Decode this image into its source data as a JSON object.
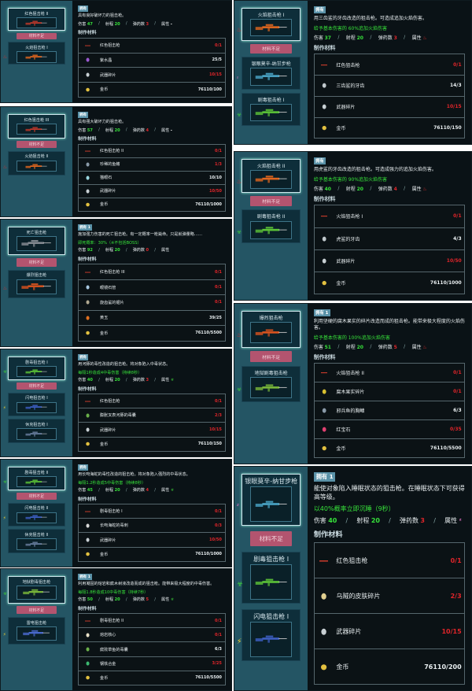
{
  "labels": {
    "not_enough": "材料不足",
    "materials_header": "制作材料",
    "damage": "伤害",
    "range": "射程",
    "ammo": "弹药数",
    "attribute": "属性",
    "sep": "/"
  },
  "colors": {
    "list_bg": "#245564",
    "detail_bg": "#0a1216",
    "ok_green": "#37e23a",
    "lack_red": "#e0252a",
    "button_pink": "#b3546f"
  },
  "panels": [
    {
      "items": [
        {
          "name": "红色狙击枪 II",
          "element": "",
          "color": "#c0392b",
          "selected": true
        },
        {
          "name": "火焰狙击枪 I",
          "element": "fire",
          "color": "#e0661e"
        }
      ],
      "badge": "拥有",
      "description": "具有良好破坏力的狙击枪。",
      "effect": "",
      "stats": {
        "damage": "47",
        "range": "20",
        "ammo": "3",
        "attr": "-"
      },
      "materials": [
        {
          "name": "红色狙击枪",
          "count": "0/1",
          "ok": false,
          "icon": "rifle"
        },
        {
          "name": "紫水晶",
          "count": "25/5",
          "ok": true,
          "icon": "amethyst"
        },
        {
          "name": "武器碎片",
          "count": "10/15",
          "ok": false,
          "icon": "parts"
        },
        {
          "name": "金币",
          "count": "76110/100",
          "ok": true,
          "icon": "coin"
        }
      ]
    },
    {
      "items": [
        {
          "name": "红色狙击枪 III",
          "element": "",
          "color": "#c0392b",
          "selected": true
        },
        {
          "name": "火焰狙击枪 II",
          "element": "fire",
          "color": "#e0661e"
        }
      ],
      "badge": "拥有",
      "description": "具有强大破坏力的狙击枪。",
      "effect": "",
      "stats": {
        "damage": "57",
        "range": "20",
        "ammo": "4",
        "attr": "-"
      },
      "materials": [
        {
          "name": "红色狙击枪 II",
          "count": "0/1",
          "ok": false,
          "icon": "rifle"
        },
        {
          "name": "珍稀的鱼鳍",
          "count": "1/3",
          "ok": false,
          "icon": "fin"
        },
        {
          "name": "猫眼石",
          "count": "10/10",
          "ok": true,
          "icon": "gem"
        },
        {
          "name": "武器碎片",
          "count": "10/50",
          "ok": false,
          "icon": "parts"
        },
        {
          "name": "金币",
          "count": "76110/1000",
          "ok": true,
          "icon": "coin"
        }
      ]
    },
    {
      "items": [
        {
          "name": "死亡狙击枪",
          "element": "",
          "color": "#8a8f96",
          "selected": true
        },
        {
          "name": "爆烈狙击枪",
          "element": "fire",
          "color": "#d9531e"
        }
      ],
      "badge": "拥有 1",
      "description": "施加强力伤害的死亡狙击枪。有一定概率一枪毙命。只是就弹量略……",
      "effect": "即死概率：30%（※不包括BOSS）",
      "stats": {
        "damage": "92",
        "range": "20",
        "ammo": "0",
        "attr": ""
      },
      "materials": [
        {
          "name": "红色狙击枪 III",
          "count": "0/1",
          "ok": false,
          "icon": "rifle"
        },
        {
          "name": "眼镜石管",
          "count": "0/1",
          "ok": false,
          "icon": "pipe"
        },
        {
          "name": "旋齿鲨的锯片",
          "count": "0/1",
          "ok": false,
          "icon": "saw"
        },
        {
          "name": "黄玉",
          "count": "39/25",
          "ok": true,
          "icon": "topaz"
        },
        {
          "name": "金币",
          "count": "76110/5500",
          "ok": true,
          "icon": "coin"
        }
      ]
    },
    {
      "items": [
        {
          "name": "剧毒狙击枪 I",
          "element": "bio",
          "color": "#5cc437",
          "selected": true
        },
        {
          "name": "闪电狙击枪 I",
          "element": "lightning",
          "color": "#3d5fc4"
        },
        {
          "name": "休克狙击枪 I",
          "element": "",
          "color": "#6a7fa0"
        }
      ],
      "badge": "拥有",
      "description": "用河豚的毒性改造的狙击枪。将对象陷入中毒状态。",
      "effect": "每隔1秒造成4中毒伤害（持续8秒）",
      "stats": {
        "damage": "40",
        "range": "20",
        "ammo": "3",
        "attr": "bio"
      },
      "materials": [
        {
          "name": "红色狙击枪",
          "count": "0/1",
          "ok": false,
          "icon": "rifle"
        },
        {
          "name": "膨胀叉表河豚的毒囊",
          "count": "2/3",
          "ok": false,
          "icon": "sac"
        },
        {
          "name": "武器碎片",
          "count": "10/15",
          "ok": false,
          "icon": "parts"
        },
        {
          "name": "金币",
          "count": "76110/150",
          "ok": true,
          "icon": "coin"
        }
      ]
    },
    {
      "items": [
        {
          "name": "剧毒狙击枪 II",
          "element": "bio",
          "color": "#5cc437",
          "selected": true
        },
        {
          "name": "闪电狙击枪 II",
          "element": "lightning",
          "color": "#3d5fc4"
        },
        {
          "name": "休克狙击枪 II",
          "element": "",
          "color": "#6a7fa0"
        }
      ],
      "badge": "拥有",
      "description": "用长吻海蛇的毒性改造的狙击枪。将对象陷入强烈的中毒状态。",
      "effect": "每隔1.2秒造成5中毒伤害（持续8秒）",
      "stats": {
        "damage": "45",
        "range": "20",
        "ammo": "4",
        "attr": "bio"
      },
      "materials": [
        {
          "name": "剧毒狙击枪 I",
          "count": "0/1",
          "ok": false,
          "icon": "rifle"
        },
        {
          "name": "长吻海蛇的毒刺",
          "count": "0/3",
          "ok": false,
          "icon": "fang"
        },
        {
          "name": "武器碎片",
          "count": "10/50",
          "ok": false,
          "icon": "parts"
        },
        {
          "name": "金币",
          "count": "76110/1000",
          "ok": true,
          "icon": "coin"
        }
      ]
    },
    {
      "items": [
        {
          "name": "地狱剧毒狙击枪",
          "element": "bio",
          "color": "#7ab83a",
          "selected": true
        },
        {
          "name": "雷电狙击枪",
          "element": "lightning",
          "color": "#4a6ad0"
        }
      ],
      "badge": "拥有 1",
      "description": "利用凝固的熔岩和腐木树液改造而成的狙击枪。能带来极大程度的中毒伤害。",
      "effect": "每隔1.8秒造成10中毒伤害（持续7秒）",
      "stats": {
        "damage": "50",
        "range": "20",
        "ammo": "5",
        "attr": "bio"
      },
      "materials": [
        {
          "name": "剧毒狙击枪 II",
          "count": "0/1",
          "ok": false,
          "icon": "rifle"
        },
        {
          "name": "熔岩核心",
          "count": "0/1",
          "ok": false,
          "icon": "core"
        },
        {
          "name": "腐败草鱼的毒囊",
          "count": "6/3",
          "ok": true,
          "icon": "sac"
        },
        {
          "name": "钢铁合金",
          "count": "3/25",
          "ok": false,
          "icon": "alloy"
        },
        {
          "name": "金币",
          "count": "76110/5500",
          "ok": true,
          "icon": "coin"
        }
      ]
    },
    {
      "items": [
        {
          "name": "火焰狙击枪 I",
          "element": "fire",
          "color": "#e0661e",
          "selected": true
        },
        {
          "name": "银眼莫辛-纳甘步枪",
          "element": "sleep",
          "color": "#4aa6c8"
        },
        {
          "name": "剧毒狙击枪 I",
          "element": "bio",
          "color": "#5cc437"
        }
      ],
      "badge": "拥有",
      "description": "用三齿鲨的牙齿改造的狙击枪。可造成追加火焰伤害。",
      "effect": "给予基本伤害的 60%追加火焰伤害",
      "stats": {
        "damage": "37",
        "range": "20",
        "ammo": "3",
        "attr": "fire"
      },
      "materials": [
        {
          "name": "红色狙击枪",
          "count": "0/1",
          "ok": false,
          "icon": "rifle"
        },
        {
          "name": "三齿鲨的牙齿",
          "count": "14/3",
          "ok": true,
          "icon": "tooth"
        },
        {
          "name": "武器碎片",
          "count": "10/15",
          "ok": false,
          "icon": "parts"
        },
        {
          "name": "金币",
          "count": "76110/150",
          "ok": true,
          "icon": "coin"
        }
      ]
    },
    {
      "items": [
        {
          "name": "火焰狙击枪 II",
          "element": "fire",
          "color": "#e0661e",
          "selected": true
        },
        {
          "name": "剧毒狙击枪 II",
          "element": "bio",
          "color": "#5cc437"
        }
      ],
      "badge": "拥有",
      "description": "用虎鲨的牙齿改造的狙击枪。可造成强力的追加火焰伤害。",
      "effect": "给予基本伤害的 90%追加火焰伤害",
      "stats": {
        "damage": "40",
        "range": "20",
        "ammo": "4",
        "attr": "fire"
      },
      "materials": [
        {
          "name": "火焰狙击枪 I",
          "count": "0/1",
          "ok": false,
          "icon": "rifle"
        },
        {
          "name": "虎鲨的牙齿",
          "count": "4/3",
          "ok": true,
          "icon": "tooth"
        },
        {
          "name": "武器碎片",
          "count": "10/50",
          "ok": false,
          "icon": "parts"
        },
        {
          "name": "金币",
          "count": "76110/1000",
          "ok": true,
          "icon": "coin"
        }
      ]
    },
    {
      "items": [
        {
          "name": "爆烈狙击枪",
          "element": "fire",
          "color": "#d9531e",
          "selected": true
        },
        {
          "name": "地狱剧毒狙击枪",
          "element": "bio",
          "color": "#7ab83a"
        }
      ],
      "badge": "拥有 1",
      "description": "利用坚硬的腐木果实的碎片改造而成的狙击枪。能带来极大程度的火焰伤害。",
      "effect": "给予基本伤害的 100%追加火焰伤害",
      "stats": {
        "damage": "51",
        "range": "20",
        "ammo": "5",
        "attr": "fire"
      },
      "materials": [
        {
          "name": "火焰狙击枪 II",
          "count": "0/1",
          "ok": false,
          "icon": "rifle"
        },
        {
          "name": "腐木果实碎片",
          "count": "0/1",
          "ok": false,
          "icon": "fruit"
        },
        {
          "name": "邪兵鱼的胸鳍",
          "count": "6/3",
          "ok": true,
          "icon": "fin"
        },
        {
          "name": "红宝石",
          "count": "0/35",
          "ok": false,
          "icon": "ruby"
        },
        {
          "name": "金币",
          "count": "76110/5500",
          "ok": true,
          "icon": "coin"
        }
      ]
    },
    {
      "items": [
        {
          "name": "银眼莫辛-纳甘步枪",
          "element": "sleep",
          "color": "#4aa6c8",
          "selected": true
        },
        {
          "name": "剧毒狙击枪 I",
          "element": "bio",
          "color": "#5cc437"
        },
        {
          "name": "闪电狙击枪 I",
          "element": "lightning",
          "color": "#3d5fc4"
        }
      ],
      "badge": "拥有 1",
      "description": "能使对象陷入睡眠状态的狙击枪。在睡眠状态下可获得高等级。",
      "effect": "以40%概率立即沉睡（9秒）",
      "stats": {
        "damage": "40",
        "range": "20",
        "ammo": "3",
        "attr": "sleep"
      },
      "materials": [
        {
          "name": "红色狙击枪",
          "count": "0/1",
          "ok": false,
          "icon": "rifle"
        },
        {
          "name": "乌贼的皮肤碎片",
          "count": "2/3",
          "ok": false,
          "icon": "skin"
        },
        {
          "name": "武器碎片",
          "count": "10/15",
          "ok": false,
          "icon": "parts"
        },
        {
          "name": "金币",
          "count": "76110/200",
          "ok": true,
          "icon": "coin"
        }
      ]
    }
  ]
}
